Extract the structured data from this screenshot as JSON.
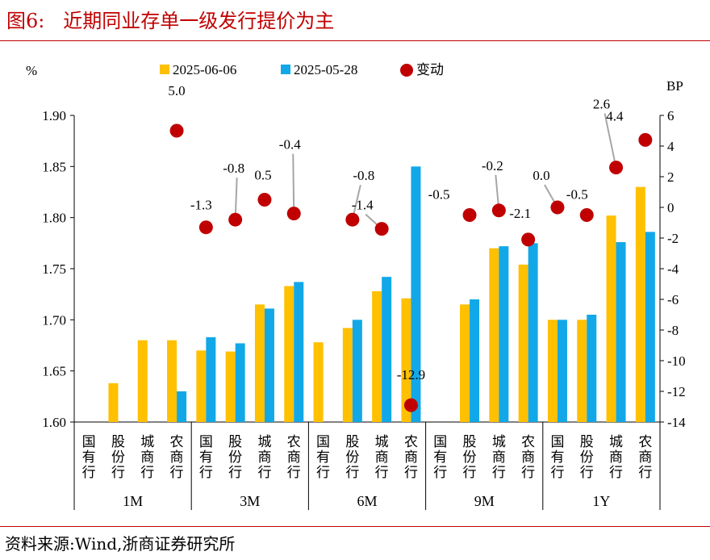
{
  "header": {
    "title": "图6:   近期同业存单一级发行提价为主"
  },
  "footer": {
    "source": "资料来源:Wind,浙商证券研究所"
  },
  "colors": {
    "accent": "#c00000",
    "series1": "#ffc000",
    "series2": "#12a8e8",
    "change": "#c00000"
  },
  "chart_data": {
    "type": "bar",
    "ylabel_left": "%",
    "ylabel_right": "BP",
    "ylim_left": [
      1.6,
      1.9
    ],
    "ylim_right": [
      -14,
      6
    ],
    "yticks_left": [
      "1.90",
      "1.85",
      "1.80",
      "1.75",
      "1.70",
      "1.65",
      "1.60"
    ],
    "yticks_right": [
      "6",
      "4",
      "2",
      "0",
      "-2",
      "-4",
      "-6",
      "-8",
      "-10",
      "-12",
      "-14"
    ],
    "legend": {
      "placement": "top",
      "labels": [
        "2025-06-06",
        "2025-05-28",
        "变动"
      ]
    },
    "groups": [
      "1M",
      "3M",
      "6M",
      "9M",
      "1Y"
    ],
    "bank_types": [
      "国有行",
      "股份行",
      "城商行",
      "农商行"
    ],
    "series": [
      {
        "name": "2025-06-06",
        "values": [
          null,
          1.638,
          1.68,
          1.68,
          1.67,
          1.669,
          1.715,
          1.733,
          1.678,
          1.692,
          1.728,
          1.721,
          null,
          1.715,
          1.77,
          1.754,
          1.7,
          1.7,
          1.802,
          1.83
        ]
      },
      {
        "name": "2025-05-28",
        "values": [
          null,
          null,
          null,
          1.63,
          1.683,
          1.677,
          1.711,
          1.737,
          null,
          1.7,
          1.742,
          1.85,
          null,
          1.72,
          1.772,
          1.775,
          1.7,
          1.705,
          1.776,
          1.786
        ]
      },
      {
        "name": "变动",
        "axis": "right",
        "values": [
          null,
          null,
          null,
          5.0,
          -1.3,
          -0.8,
          0.5,
          -0.4,
          null,
          -0.8,
          -1.4,
          -12.9,
          null,
          -0.5,
          -0.2,
          -2.1,
          0.0,
          -0.5,
          2.6,
          4.4
        ]
      }
    ],
    "change_labels": [
      "",
      "",
      "",
      "5.0",
      "-1.3",
      "-0.8",
      "0.5",
      "-0.4",
      "",
      "-0.8",
      "-1.4",
      "-12.9",
      "",
      "-0.5",
      "-0.2",
      "-2.1",
      "0.0",
      "-0.5",
      "2.6",
      "4.4"
    ],
    "grid": false
  }
}
